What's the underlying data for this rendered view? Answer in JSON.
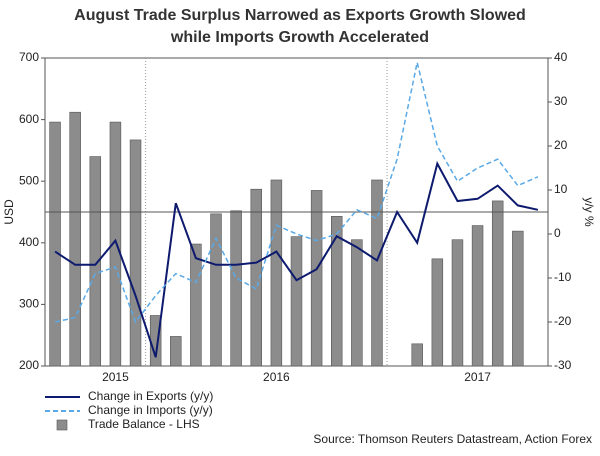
{
  "chart_data": {
    "type": "bar",
    "title": [
      "August Trade Surplus Narrowed as Exports Growth Slowed",
      "while Imports Growth Accelerated"
    ],
    "ylabel": "USD",
    "y2label": "y/y %",
    "source": "Source: Thomson Reuters Datastream, Action Forex",
    "categories": [
      null,
      null,
      null,
      "2015",
      null,
      null,
      null,
      null,
      null,
      null,
      null,
      "2016",
      null,
      null,
      null,
      null,
      null,
      null,
      null,
      null,
      null,
      "2017",
      null,
      null,
      null
    ],
    "ylim": [
      200,
      700
    ],
    "yticks": [
      200,
      300,
      400,
      500,
      600,
      700
    ],
    "y2lim": [
      -30,
      40
    ],
    "y2ticks": [
      -30,
      -20,
      -10,
      0,
      10,
      20,
      30,
      40
    ],
    "reference_line": 450,
    "series": [
      {
        "name": "Change in Exports (y/y)",
        "type": "line",
        "axis": "y2",
        "color": "#0d1a6e",
        "values": [
          -4,
          -7,
          -7,
          -1.5,
          -14,
          -28,
          7,
          -5.5,
          -7,
          -7,
          -6.5,
          -4,
          -10.5,
          -8,
          -0.5,
          -3,
          -6,
          5,
          -2,
          16,
          7.5,
          8,
          11,
          6.5,
          5.5
        ]
      },
      {
        "name": "Change in Imports (y/y)",
        "type": "line",
        "axis": "y2",
        "color": "#5aa9e6",
        "dashed": true,
        "values": [
          -20,
          -19,
          -9,
          -7.5,
          -20,
          -14,
          -9,
          -11,
          -1,
          -10,
          -12.5,
          2,
          0,
          -1.5,
          0,
          5.5,
          3.5,
          17,
          39,
          20,
          12,
          15,
          17,
          11,
          13
        ]
      },
      {
        "name": "Trade Balance - LHS",
        "type": "bar",
        "axis": "y",
        "color": "#8c8c8c",
        "values": [
          596,
          612,
          540,
          596,
          567,
          282,
          248,
          398,
          447,
          452,
          487,
          502,
          410,
          485,
          443,
          405,
          502,
          null,
          236,
          374,
          405,
          428,
          468,
          419,
          null
        ]
      }
    ]
  }
}
